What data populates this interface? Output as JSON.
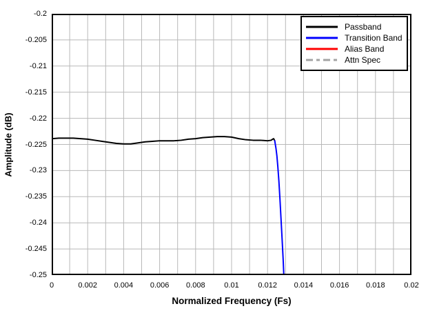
{
  "figure": {
    "background": "#ffffff",
    "plot_border_color": "#000000"
  },
  "chart_data": {
    "type": "line",
    "title": "",
    "xlabel": "Normalized Frequency (Fs)",
    "ylabel": "Amplitude (dB)",
    "xlim": [
      0,
      0.02
    ],
    "ylim": [
      -0.25,
      -0.2
    ],
    "grid": true,
    "grid_color": "#b8b8b8",
    "axis_color": "#000000",
    "x_grid_step": 0.001,
    "x_tick_values": [
      0,
      0.002,
      0.004,
      0.006,
      0.008,
      0.01,
      0.012,
      0.014,
      0.016,
      0.018,
      0.02
    ],
    "x_tick_labels": [
      "0",
      "0.002",
      "0.004",
      "0.006",
      "0.008",
      "0.01",
      "0.012",
      "0.014",
      "0.016",
      "0.018",
      "0.02"
    ],
    "y_tick_values": [
      -0.2,
      -0.205,
      -0.21,
      -0.215,
      -0.22,
      -0.225,
      -0.23,
      -0.235,
      -0.24,
      -0.245,
      -0.25
    ],
    "y_tick_labels": [
      "-0.2",
      "-0.205",
      "-0.21",
      "-0.215",
      "-0.22",
      "-0.225",
      "-0.23",
      "-0.235",
      "-0.24",
      "-0.245",
      "-0.25"
    ],
    "legend_position": "top-right",
    "series": [
      {
        "name": "Passband",
        "color": "#000000",
        "dash": null,
        "points": [
          [
            0.0,
            -0.2239
          ],
          [
            0.0004,
            -0.2238
          ],
          [
            0.0008,
            -0.2238
          ],
          [
            0.0012,
            -0.2238
          ],
          [
            0.0016,
            -0.2239
          ],
          [
            0.002,
            -0.224
          ],
          [
            0.0024,
            -0.2242
          ],
          [
            0.0028,
            -0.2244
          ],
          [
            0.0032,
            -0.2246
          ],
          [
            0.0036,
            -0.2248
          ],
          [
            0.004,
            -0.2249
          ],
          [
            0.0044,
            -0.2249
          ],
          [
            0.0048,
            -0.2247
          ],
          [
            0.0052,
            -0.2245
          ],
          [
            0.0056,
            -0.2244
          ],
          [
            0.006,
            -0.2243
          ],
          [
            0.0064,
            -0.2243
          ],
          [
            0.0068,
            -0.2243
          ],
          [
            0.0072,
            -0.2242
          ],
          [
            0.0076,
            -0.224
          ],
          [
            0.008,
            -0.2239
          ],
          [
            0.0084,
            -0.2237
          ],
          [
            0.0088,
            -0.2236
          ],
          [
            0.0092,
            -0.2235
          ],
          [
            0.0096,
            -0.2235
          ],
          [
            0.01,
            -0.2236
          ],
          [
            0.0104,
            -0.2239
          ],
          [
            0.0108,
            -0.2241
          ],
          [
            0.0112,
            -0.2242
          ],
          [
            0.0116,
            -0.2242
          ],
          [
            0.012,
            -0.2243
          ],
          [
            0.0122,
            -0.2242
          ],
          [
            0.01228,
            -0.224
          ],
          [
            0.01234,
            -0.2239
          ],
          [
            0.0124,
            -0.2243
          ]
        ]
      },
      {
        "name": "Transition Band",
        "color": "#0000ff",
        "dash": null,
        "points": [
          [
            0.0124,
            -0.2243
          ],
          [
            0.01247,
            -0.2258
          ],
          [
            0.01252,
            -0.2272
          ],
          [
            0.01257,
            -0.2292
          ],
          [
            0.01263,
            -0.232
          ],
          [
            0.01269,
            -0.2355
          ],
          [
            0.01275,
            -0.2393
          ],
          [
            0.01281,
            -0.2432
          ],
          [
            0.01287,
            -0.2472
          ],
          [
            0.01291,
            -0.2505
          ]
        ]
      },
      {
        "name": "Alias Band",
        "color": "#ff0000",
        "dash": null,
        "points": []
      },
      {
        "name": "Attn Spec",
        "color": "#a3a3a3",
        "dash": [
          10,
          5,
          5,
          5
        ],
        "points": []
      }
    ]
  }
}
